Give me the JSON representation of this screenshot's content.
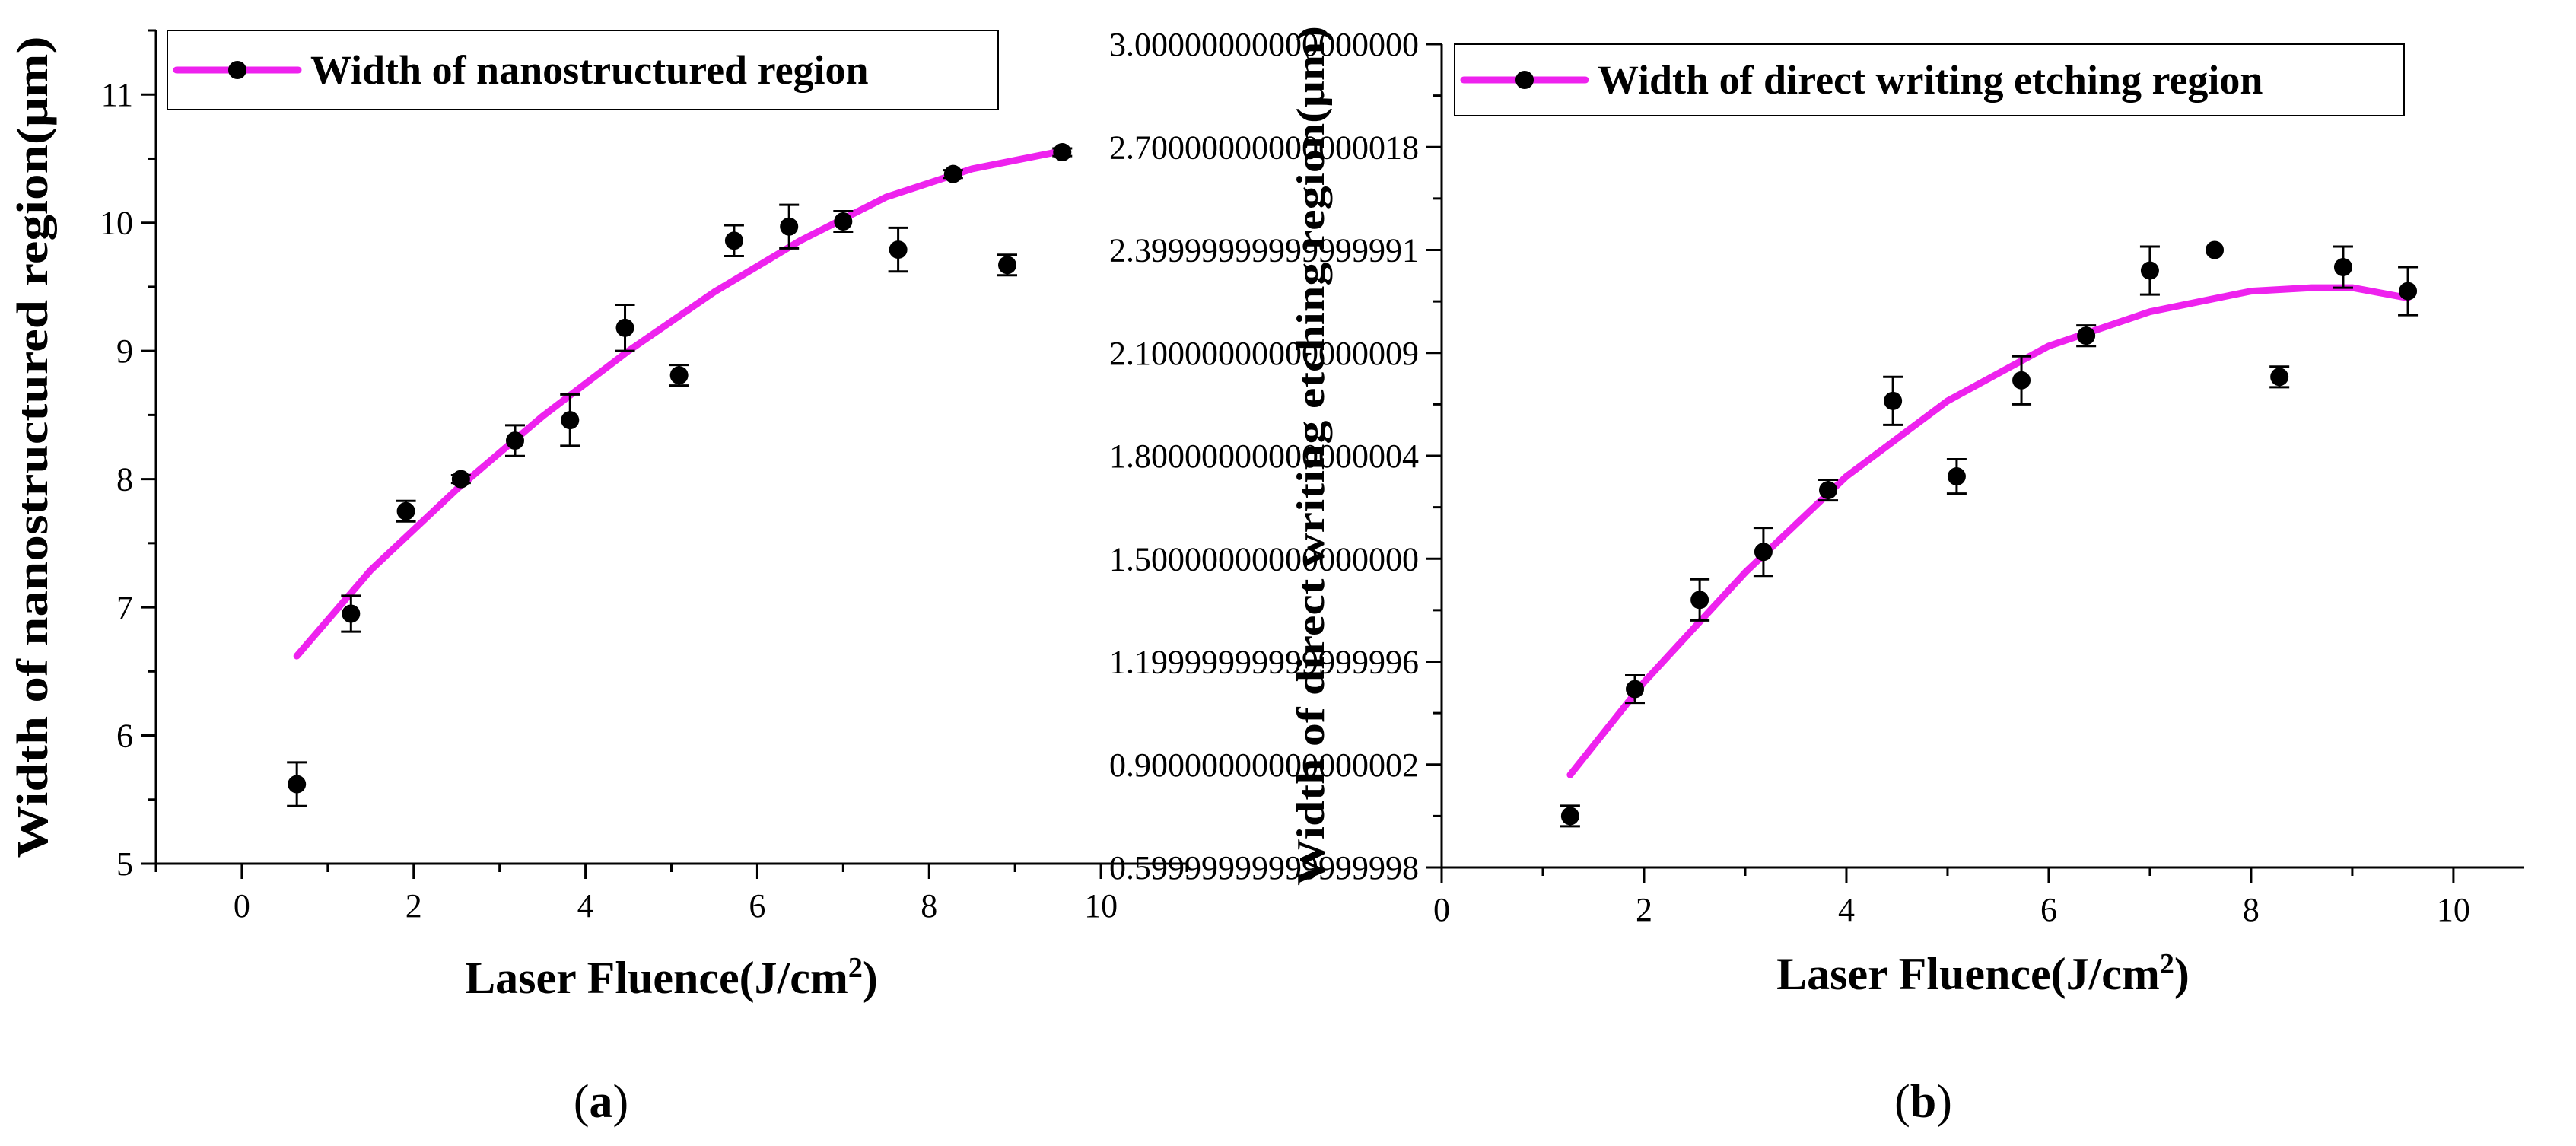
{
  "colors": {
    "fit": "#ee22ee",
    "marker": "#000000",
    "axis": "#000000",
    "background": "#ffffff"
  },
  "chart_data": [
    {
      "id": "a",
      "type": "scatter",
      "panel_label": "(a)",
      "panel_letter": "a",
      "xlabel": "Laser Fluence(J/cm",
      "xlabel_sup": "2",
      "xlabel_close": ")",
      "ylabel": "Width of nanostructured region(μm)",
      "xlim": [
        -1,
        11
      ],
      "ylim": [
        5,
        11.5
      ],
      "xticks": [
        0,
        2,
        4,
        6,
        8,
        10
      ],
      "yticks": [
        5,
        6,
        7,
        8,
        9,
        10,
        11
      ],
      "x_minor_step": 1,
      "y_minor_step": 0.5,
      "grid": false,
      "legend": {
        "label": "Width of nanostructured region",
        "position": "top-left"
      },
      "series": [
        {
          "name": "Width of nanostructured region",
          "x": [
            0.64,
            1.27,
            1.91,
            2.55,
            3.18,
            3.82,
            4.46,
            5.09,
            5.73,
            6.37,
            7.0,
            7.64,
            8.28,
            8.91,
            9.55
          ],
          "y": [
            5.62,
            6.95,
            7.75,
            8.0,
            8.3,
            8.46,
            9.18,
            8.81,
            9.86,
            9.97,
            10.01,
            9.79,
            10.38,
            9.67,
            10.55
          ],
          "err": [
            0.17,
            0.14,
            0.08,
            0.03,
            0.12,
            0.2,
            0.18,
            0.08,
            0.12,
            0.17,
            0.08,
            0.17,
            0.03,
            0.08,
            0.03
          ]
        }
      ],
      "fit": {
        "x": [
          0.64,
          1.5,
          2.5,
          3.5,
          4.5,
          5.5,
          6.5,
          7.5,
          8.5,
          9.55
        ],
        "y": [
          6.62,
          7.29,
          7.92,
          8.49,
          9.0,
          9.46,
          9.86,
          10.2,
          10.42,
          10.56
        ]
      }
    },
    {
      "id": "b",
      "type": "scatter",
      "panel_label": "(b)",
      "panel_letter": "b",
      "xlabel": "Laser Fluence(J/cm",
      "xlabel_sup": "2",
      "xlabel_close": ")",
      "ylabel": "Width of direct writing etching region(μm)",
      "xlim": [
        0,
        10.7
      ],
      "ylim": [
        0.6,
        3.0
      ],
      "xticks": [
        0,
        2,
        4,
        6,
        8,
        10
      ],
      "yticks": [
        0.6,
        0.9,
        1.2,
        1.5,
        1.8,
        2.1,
        2.4,
        2.7,
        3.0
      ],
      "x_minor_step": 1,
      "y_minor_step": 0.15,
      "grid": false,
      "legend": {
        "label": "Width of direct writing etching region",
        "position": "top-left"
      },
      "series": [
        {
          "name": "Width of direct writing etching region",
          "x": [
            1.27,
            1.91,
            2.55,
            3.18,
            3.82,
            4.46,
            5.09,
            5.73,
            6.37,
            7.0,
            7.64,
            8.28,
            8.91,
            9.55
          ],
          "y": [
            0.75,
            1.12,
            1.38,
            1.52,
            1.7,
            1.96,
            1.74,
            2.02,
            2.15,
            2.34,
            2.4,
            2.03,
            2.35,
            2.28
          ],
          "err": [
            0.03,
            0.04,
            0.06,
            0.07,
            0.03,
            0.07,
            0.05,
            0.07,
            0.03,
            0.07,
            0.0,
            0.03,
            0.06,
            0.07
          ]
        }
      ],
      "fit": {
        "x": [
          1.27,
          2.0,
          3.0,
          4.0,
          5.0,
          6.0,
          7.0,
          8.0,
          8.6,
          9.0,
          9.55
        ],
        "y": [
          0.87,
          1.14,
          1.46,
          1.74,
          1.96,
          2.12,
          2.22,
          2.28,
          2.29,
          2.29,
          2.26
        ]
      }
    }
  ]
}
